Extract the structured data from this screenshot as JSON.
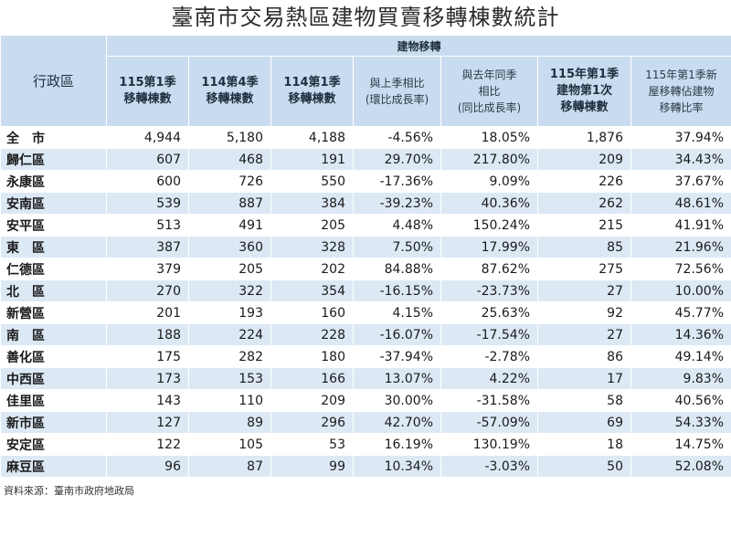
{
  "title": "臺南市交易熱區建物買賣移轉棟數統計",
  "headers": {
    "district": "行政區",
    "group": "建物移轉",
    "columns": [
      "115第1季\n移轉棟數",
      "114第4季\n移轉棟數",
      "114第1季\n移轉棟數",
      "與上季相比\n(環比成長率)",
      "與去年同季\n相比\n(同比成長率)",
      "115年第1季\n建物第1次\n移轉棟數",
      "115年第1季新\n屋移轉佔建物\n移轉比率"
    ]
  },
  "rows": [
    {
      "name": "全　市",
      "cells": [
        "4,944",
        "5,180",
        "4,188",
        "-4.56%",
        "18.05%",
        "1,876",
        "37.94%"
      ]
    },
    {
      "name": "歸仁區",
      "cells": [
        "607",
        "468",
        "191",
        "29.70%",
        "217.80%",
        "209",
        "34.43%"
      ]
    },
    {
      "name": "永康區",
      "cells": [
        "600",
        "726",
        "550",
        "-17.36%",
        "9.09%",
        "226",
        "37.67%"
      ]
    },
    {
      "name": "安南區",
      "cells": [
        "539",
        "887",
        "384",
        "-39.23%",
        "40.36%",
        "262",
        "48.61%"
      ]
    },
    {
      "name": "安平區",
      "cells": [
        "513",
        "491",
        "205",
        "4.48%",
        "150.24%",
        "215",
        "41.91%"
      ]
    },
    {
      "name": "東　區",
      "cells": [
        "387",
        "360",
        "328",
        "7.50%",
        "17.99%",
        "85",
        "21.96%"
      ]
    },
    {
      "name": "仁德區",
      "cells": [
        "379",
        "205",
        "202",
        "84.88%",
        "87.62%",
        "275",
        "72.56%"
      ]
    },
    {
      "name": "北　區",
      "cells": [
        "270",
        "322",
        "354",
        "-16.15%",
        "-23.73%",
        "27",
        "10.00%"
      ]
    },
    {
      "name": "新營區",
      "cells": [
        "201",
        "193",
        "160",
        "4.15%",
        "25.63%",
        "92",
        "45.77%"
      ]
    },
    {
      "name": "南　區",
      "cells": [
        "188",
        "224",
        "228",
        "-16.07%",
        "-17.54%",
        "27",
        "14.36%"
      ]
    },
    {
      "name": "善化區",
      "cells": [
        "175",
        "282",
        "180",
        "-37.94%",
        "-2.78%",
        "86",
        "49.14%"
      ]
    },
    {
      "name": "中西區",
      "cells": [
        "173",
        "153",
        "166",
        "13.07%",
        "4.22%",
        "17",
        "9.83%"
      ]
    },
    {
      "name": "佳里區",
      "cells": [
        "143",
        "110",
        "209",
        "30.00%",
        "-31.58%",
        "58",
        "40.56%"
      ]
    },
    {
      "name": "新市區",
      "cells": [
        "127",
        "89",
        "296",
        "42.70%",
        "-57.09%",
        "69",
        "54.33%"
      ]
    },
    {
      "name": "安定區",
      "cells": [
        "122",
        "105",
        "53",
        "16.19%",
        "130.19%",
        "18",
        "14.75%"
      ]
    },
    {
      "name": "麻豆區",
      "cells": [
        "96",
        "87",
        "99",
        "10.34%",
        "-3.03%",
        "50",
        "52.08%"
      ]
    }
  ],
  "source": "資料來源：臺南市政府地政局",
  "colors": {
    "header_bg": "#c9dcef",
    "row_alt": "#dce9f5"
  }
}
